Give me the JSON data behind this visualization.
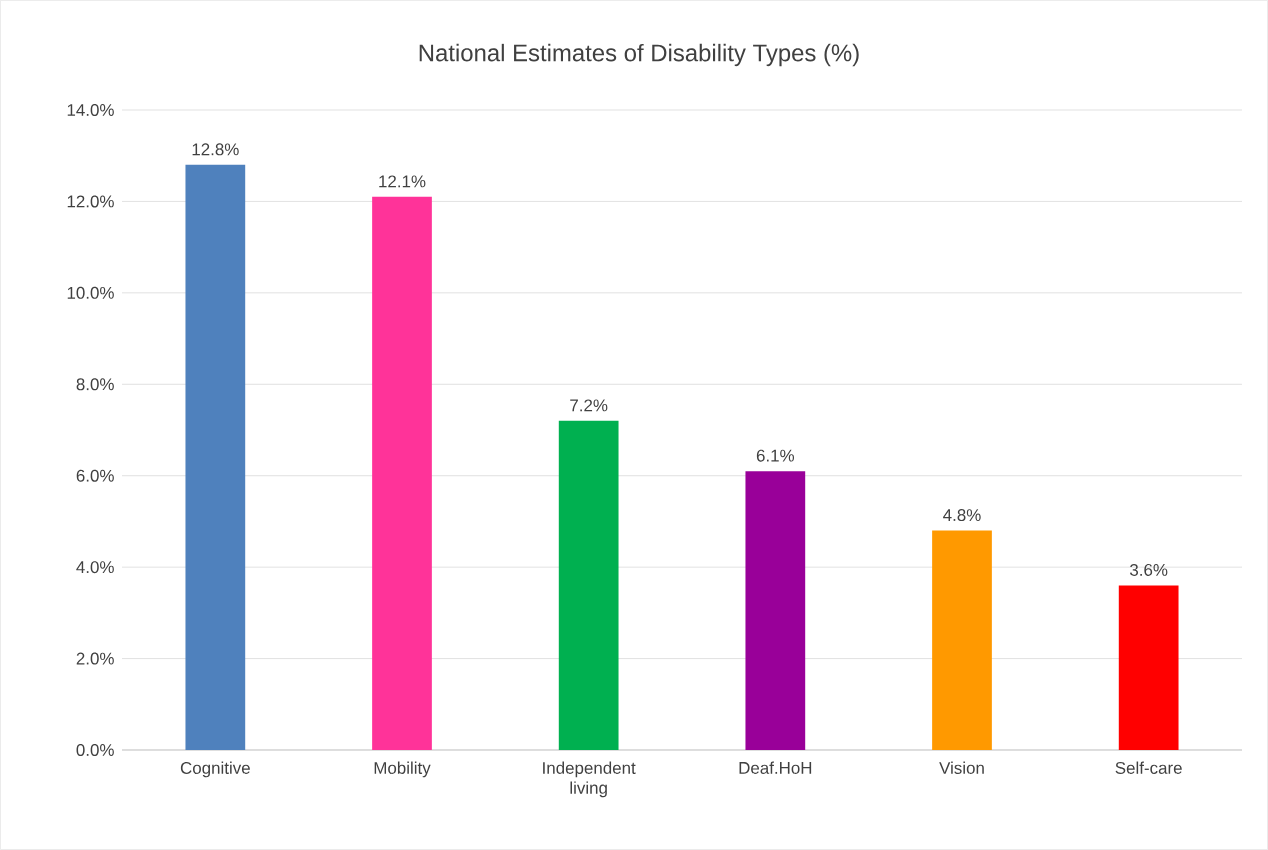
{
  "chart_data": {
    "type": "bar",
    "title": "National Estimates of Disability Types (%)",
    "categories": [
      "Cognitive",
      "Mobility",
      "Independent living",
      "Deaf.HoH",
      "Vision",
      "Self-care"
    ],
    "values": [
      12.8,
      12.1,
      7.2,
      6.1,
      4.8,
      3.6
    ],
    "colors": [
      "#4f81bd",
      "#ff3399",
      "#00b050",
      "#990099",
      "#ff9900",
      "#ff0000"
    ],
    "value_labels": [
      "12.8%",
      "12.1%",
      "7.2%",
      "6.1%",
      "4.8%",
      "3.6%"
    ],
    "ylim": [
      0,
      14
    ],
    "yticks": [
      {
        "value": 0,
        "label": "0.0%"
      },
      {
        "value": 2,
        "label": "2.0%"
      },
      {
        "value": 4,
        "label": "4.0%"
      },
      {
        "value": 6,
        "label": "6.0%"
      },
      {
        "value": 8,
        "label": "8.0%"
      },
      {
        "value": 10,
        "label": "10.0%"
      },
      {
        "value": 12,
        "label": "12.0%"
      },
      {
        "value": 14,
        "label": "14.0%"
      }
    ],
    "grid": "y"
  }
}
